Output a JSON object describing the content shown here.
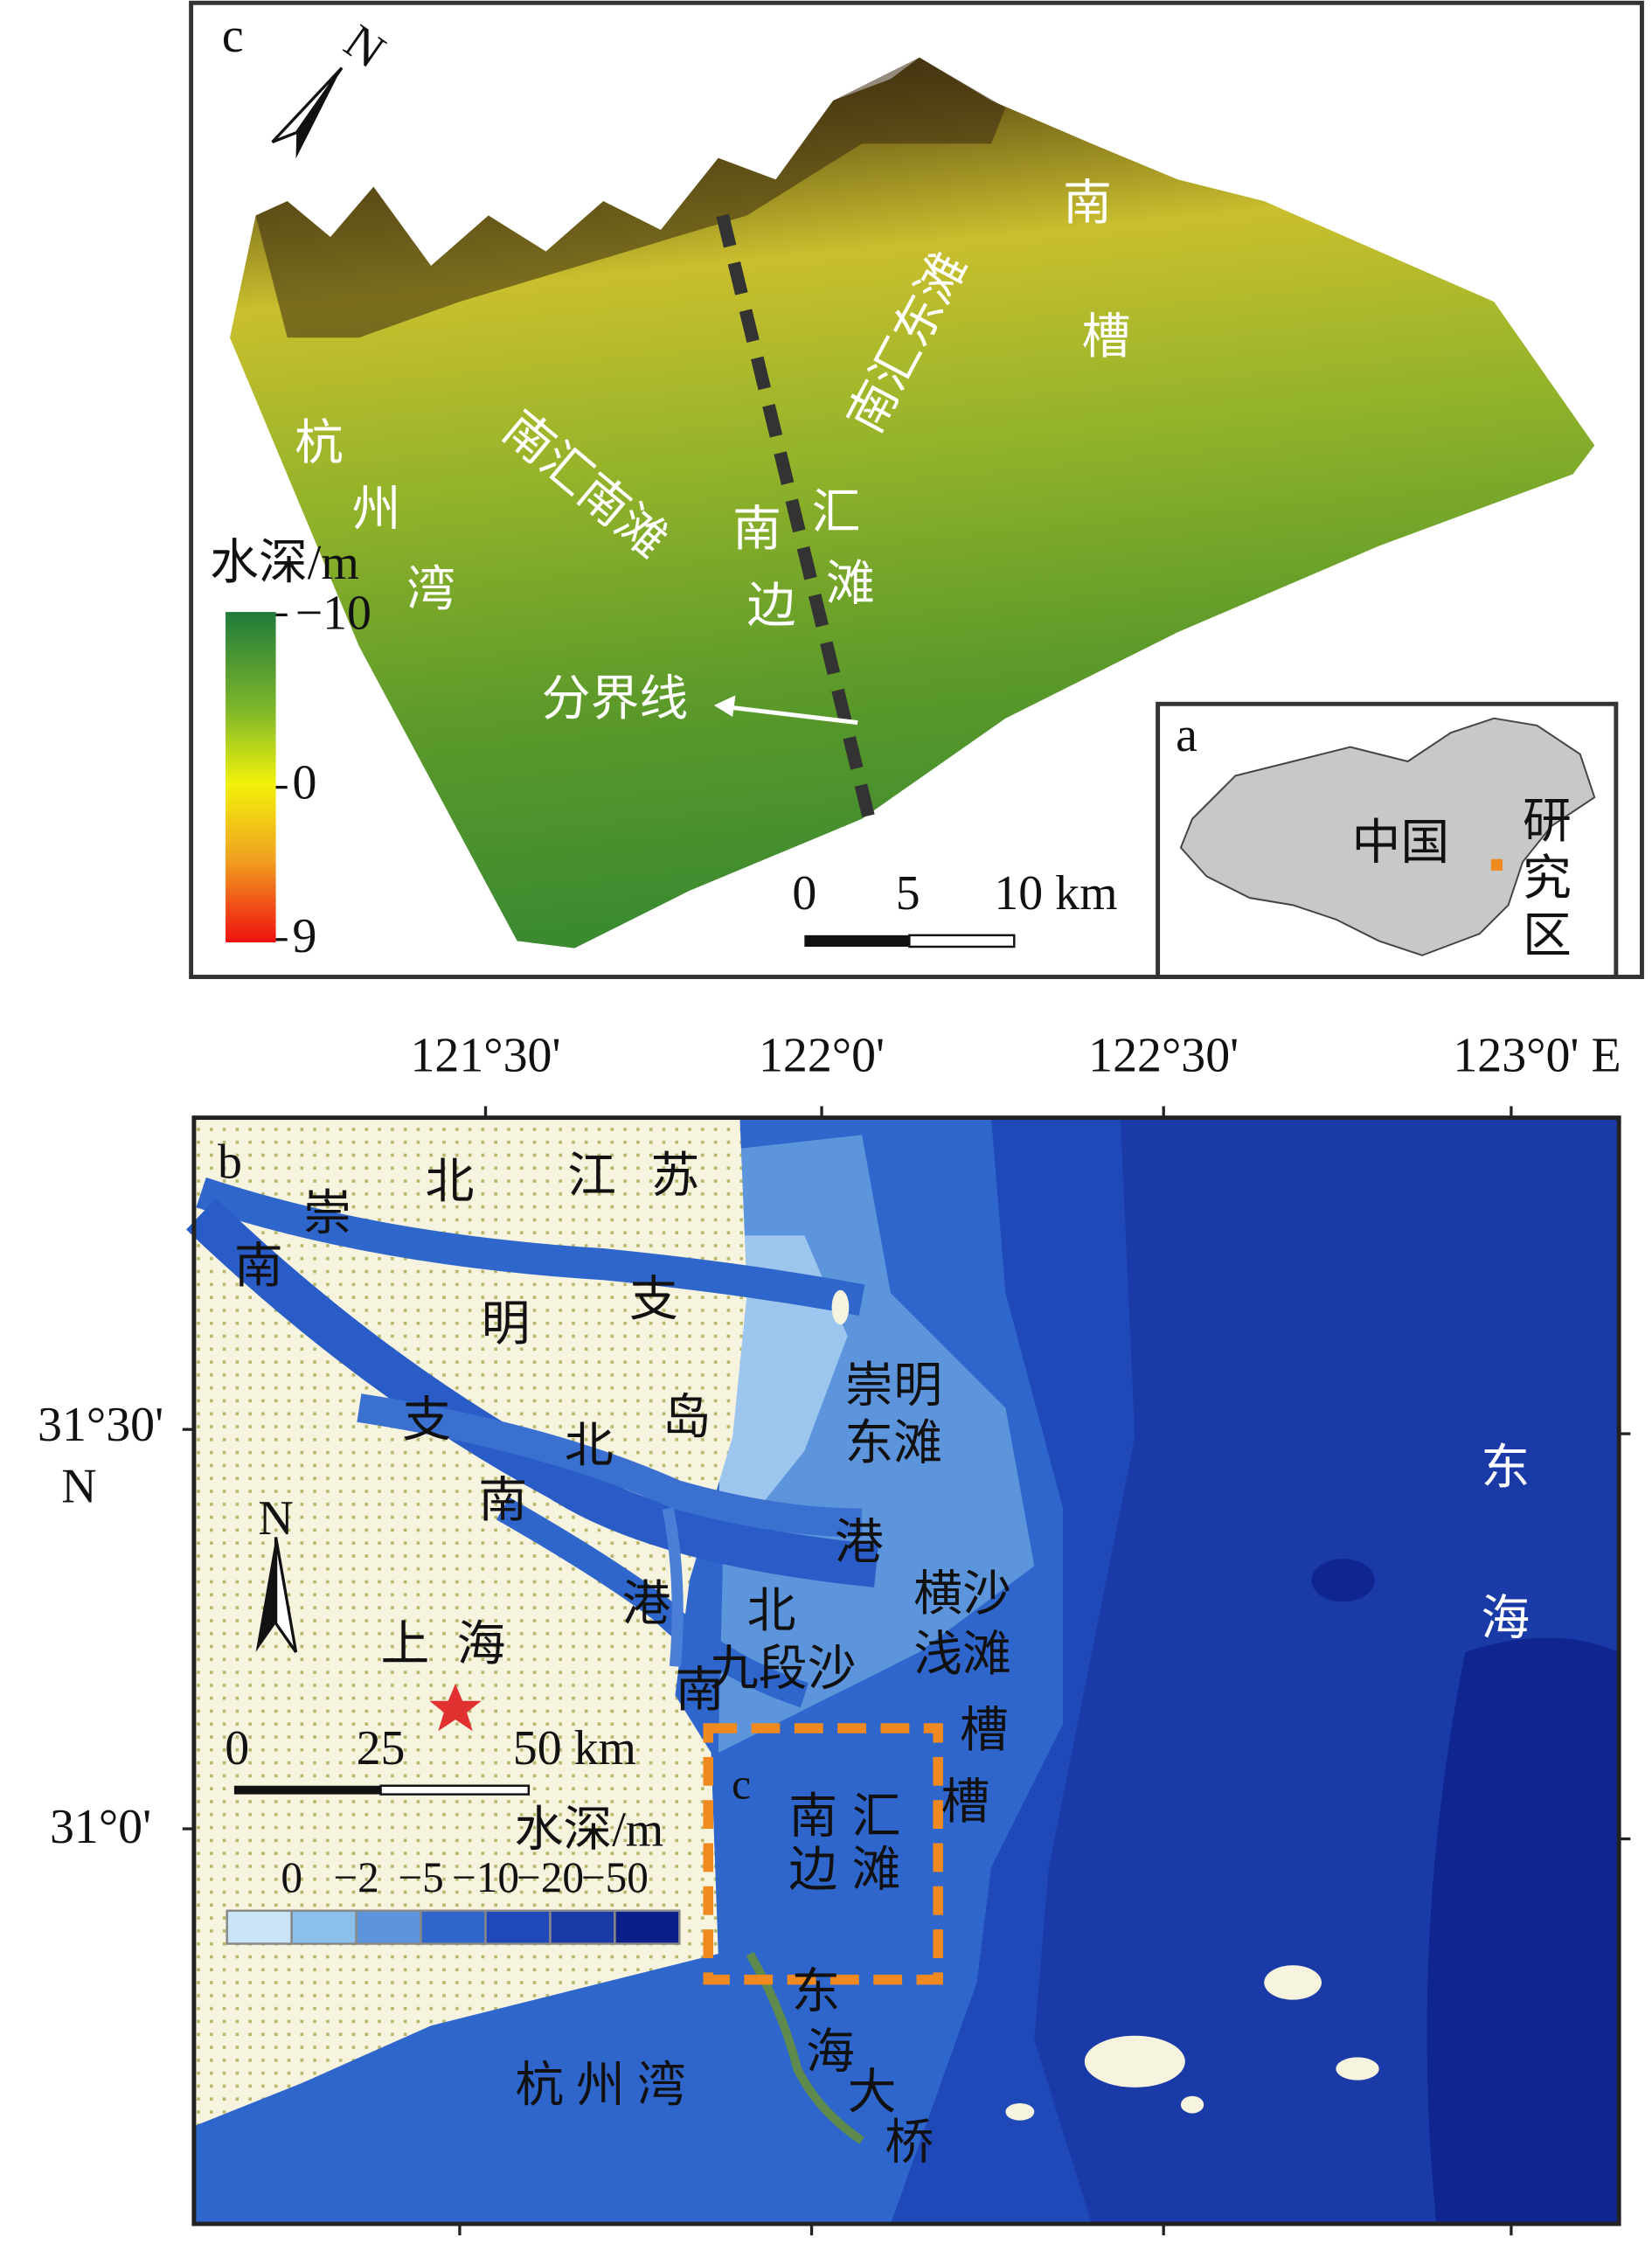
{
  "panel_c": {
    "label": "c",
    "north": "N",
    "labels": [
      "南",
      "槽",
      "南汇东滩",
      "杭",
      "州",
      "湾",
      "南汇南滩",
      "南",
      "边",
      "汇",
      "滩",
      "分界线"
    ],
    "legend_title": "水深/m",
    "legend_ticks": [
      "−10",
      "0",
      "9"
    ],
    "scale_ticks": [
      "0",
      "5",
      "10 km"
    ]
  },
  "inset_a": {
    "label": "a",
    "labels": [
      "中国",
      "研",
      "究",
      "区"
    ]
  },
  "panel_b": {
    "label": "b",
    "lon_ticks": [
      "121°30'",
      "122°0'",
      "122°30'",
      "123°0' E"
    ],
    "lat_ticks": [
      "31°30'",
      "31°0'"
    ],
    "lat_unit": "N",
    "labels": [
      "崇",
      "北",
      "江",
      "苏",
      "南",
      "明",
      "支",
      "崇明",
      "东滩",
      "岛",
      "支",
      "北",
      "南",
      "港",
      "横沙",
      "浅滩",
      "港",
      "北",
      "九段沙",
      "上",
      "海",
      "南",
      "槽",
      "c",
      "南",
      "汇",
      "边",
      "滩",
      "槽",
      "东",
      "海",
      "大",
      "桥",
      "杭 州 湾",
      "东",
      "海"
    ],
    "north": "N",
    "legend_title": "水深/m",
    "legend_ticks": [
      "0",
      "−2",
      "−5",
      "−10",
      "−20",
      "−50"
    ],
    "scale_ticks": [
      "0",
      "25",
      "50 km"
    ]
  }
}
